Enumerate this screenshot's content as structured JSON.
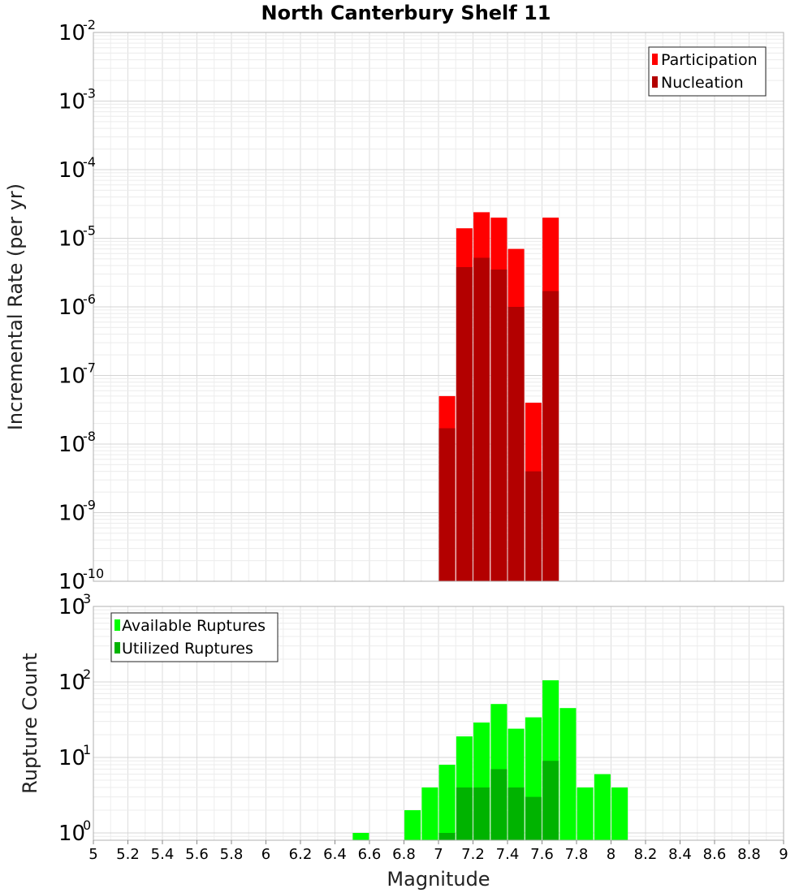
{
  "chart_data": [
    {
      "type": "bar",
      "title": "North Canterbury Shelf 11",
      "xlabel": "",
      "ylabel": "Incremental Rate (per yr)",
      "yscale": "log",
      "ylim": [
        1e-10,
        0.01
      ],
      "xlim": [
        5,
        9
      ],
      "y_tick_exponents": [
        "-10",
        "-9",
        "-8",
        "-7",
        "-6",
        "-5",
        "-4",
        "-3",
        "-2"
      ],
      "legend_position": "top-right",
      "grid": true,
      "series": [
        {
          "name": "Participation",
          "color": "#ff0000",
          "points": [
            {
              "x": 7.05,
              "y": 5e-08
            },
            {
              "x": 7.15,
              "y": 1.4e-05
            },
            {
              "x": 7.25,
              "y": 2.4e-05
            },
            {
              "x": 7.35,
              "y": 2e-05
            },
            {
              "x": 7.45,
              "y": 7e-06
            },
            {
              "x": 7.55,
              "y": 4e-08
            },
            {
              "x": 7.65,
              "y": 2e-05
            }
          ]
        },
        {
          "name": "Nucleation",
          "color": "#b30000",
          "points": [
            {
              "x": 7.05,
              "y": 1.7e-08
            },
            {
              "x": 7.15,
              "y": 3.8e-06
            },
            {
              "x": 7.25,
              "y": 5.2e-06
            },
            {
              "x": 7.35,
              "y": 3.5e-06
            },
            {
              "x": 7.45,
              "y": 1e-06
            },
            {
              "x": 7.55,
              "y": 4e-09
            },
            {
              "x": 7.65,
              "y": 1.7e-06
            }
          ]
        }
      ]
    },
    {
      "type": "bar",
      "title": "",
      "xlabel": "Magnitude",
      "ylabel": "Rupture Count",
      "yscale": "log",
      "ylim": [
        0.8,
        1000
      ],
      "xlim": [
        5,
        9
      ],
      "y_tick_exponents": [
        "0",
        "1",
        "2",
        "3"
      ],
      "x_ticks": [
        "5",
        "5.2",
        "5.4",
        "5.6",
        "5.8",
        "6",
        "6.2",
        "6.4",
        "6.6",
        "6.8",
        "7",
        "7.2",
        "7.4",
        "7.6",
        "7.8",
        "8",
        "8.2",
        "8.4",
        "8.6",
        "8.8",
        "9"
      ],
      "legend_position": "top-left",
      "grid": true,
      "series": [
        {
          "name": "Available Ruptures",
          "color": "#00ff00",
          "points": [
            {
              "x": 6.55,
              "y": 1
            },
            {
              "x": 6.85,
              "y": 2
            },
            {
              "x": 6.95,
              "y": 4
            },
            {
              "x": 7.05,
              "y": 8
            },
            {
              "x": 7.15,
              "y": 19
            },
            {
              "x": 7.25,
              "y": 29
            },
            {
              "x": 7.35,
              "y": 51
            },
            {
              "x": 7.45,
              "y": 24
            },
            {
              "x": 7.55,
              "y": 34
            },
            {
              "x": 7.65,
              "y": 105
            },
            {
              "x": 7.75,
              "y": 45
            },
            {
              "x": 7.85,
              "y": 4
            },
            {
              "x": 7.95,
              "y": 6
            },
            {
              "x": 8.05,
              "y": 4
            }
          ]
        },
        {
          "name": "Utilized Ruptures",
          "color": "#00b300",
          "points": [
            {
              "x": 7.05,
              "y": 1
            },
            {
              "x": 7.15,
              "y": 4
            },
            {
              "x": 7.25,
              "y": 4
            },
            {
              "x": 7.35,
              "y": 7
            },
            {
              "x": 7.45,
              "y": 4
            },
            {
              "x": 7.55,
              "y": 3
            },
            {
              "x": 7.65,
              "y": 9
            }
          ]
        }
      ]
    }
  ]
}
